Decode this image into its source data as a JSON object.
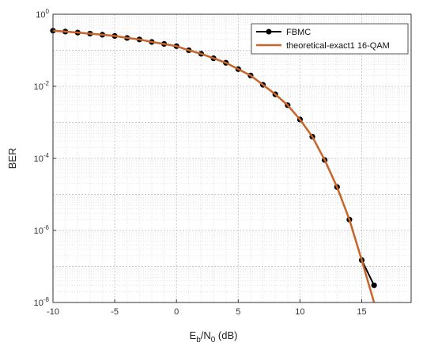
{
  "chart_data": {
    "type": "line",
    "title": "",
    "xlabel": {
      "base": "E",
      "sub1": "b",
      "mid": "/N",
      "sub2": "0",
      "unit": " (dB)"
    },
    "ylabel": "BER",
    "xlim": [
      -10,
      19
    ],
    "ylim": [
      1e-08,
      1
    ],
    "yscale": "log",
    "grid": "on (major and minor, dotted)",
    "legend_position": "top-right",
    "x_ticks": [
      "-10",
      "-5",
      "0",
      "5",
      "10",
      "15"
    ],
    "y_ticks": [
      {
        "base": "10",
        "exp": "0"
      },
      {
        "base": "10",
        "exp": "-2"
      },
      {
        "base": "10",
        "exp": "-4"
      },
      {
        "base": "10",
        "exp": "-6"
      },
      {
        "base": "10",
        "exp": "-8"
      }
    ],
    "x": [
      -10,
      -9,
      -8,
      -7,
      -6,
      -5,
      -4,
      -3,
      -2,
      -1,
      0,
      1,
      2,
      3,
      4,
      5,
      6,
      7,
      8,
      9,
      10,
      11,
      12,
      13,
      14,
      15,
      16
    ],
    "series": [
      {
        "name": "FBMC",
        "color": "#000000",
        "marker": "circle",
        "values": [
          0.35,
          0.33,
          0.31,
          0.29,
          0.27,
          0.25,
          0.22,
          0.2,
          0.17,
          0.15,
          0.13,
          0.1,
          0.08,
          0.06,
          0.045,
          0.03,
          0.02,
          0.011,
          0.006,
          0.003,
          0.0012,
          0.0004,
          9e-05,
          1.6e-05,
          2e-06,
          1.5e-07,
          3e-08
        ]
      },
      {
        "name": "theoretical-exact1 16-QAM",
        "color": "#c8652a",
        "marker": "none",
        "x": [
          -10,
          -9,
          -8,
          -7,
          -6,
          -5,
          -4,
          -3,
          -2,
          -1,
          0,
          1,
          2,
          3,
          4,
          5,
          6,
          7,
          8,
          9,
          10,
          11,
          12,
          13,
          14,
          15,
          16
        ],
        "values": [
          0.35,
          0.33,
          0.31,
          0.29,
          0.27,
          0.25,
          0.22,
          0.2,
          0.17,
          0.15,
          0.13,
          0.1,
          0.08,
          0.06,
          0.045,
          0.03,
          0.02,
          0.011,
          0.006,
          0.003,
          0.0012,
          0.0004,
          9e-05,
          1.6e-05,
          2e-06,
          1.5e-07,
          1e-08
        ]
      }
    ]
  }
}
